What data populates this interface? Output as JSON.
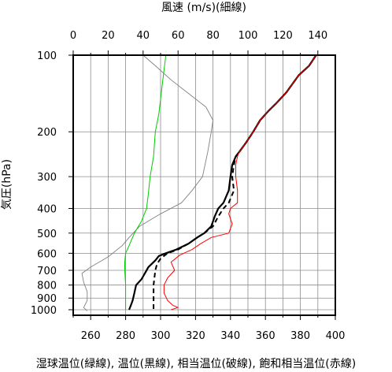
{
  "chart_data": {
    "type": "line",
    "top_axis": {
      "label": "風速 (m/s)(細線)",
      "ticks": [
        0,
        20,
        40,
        60,
        80,
        100,
        120,
        140
      ],
      "range": [
        0,
        150
      ]
    },
    "bottom_axis": {
      "label": "湿球温位(緑線), 温位(黒線), 相当温位(破線), 飽和相当温位(赤線)",
      "ticks": [
        260,
        280,
        300,
        320,
        340,
        360,
        380,
        400
      ],
      "range": [
        250,
        400
      ]
    },
    "y_axis": {
      "label": "気圧(hPa)",
      "scale": "log",
      "reversed": true,
      "ticks": [
        100,
        200,
        300,
        400,
        500,
        600,
        700,
        800,
        900,
        1000
      ],
      "range": [
        100,
        1050
      ]
    },
    "grid": true,
    "series": [
      {
        "key": "wind",
        "axis": "top",
        "color": "#808080",
        "style": "thin",
        "points": [
          [
            40,
            100
          ],
          [
            47,
            110
          ],
          [
            56,
            125
          ],
          [
            68,
            145
          ],
          [
            76,
            160
          ],
          [
            80,
            180
          ],
          [
            79,
            200
          ],
          [
            77,
            240
          ],
          [
            74,
            300
          ],
          [
            68,
            340
          ],
          [
            62,
            380
          ],
          [
            50,
            420
          ],
          [
            38,
            470
          ],
          [
            32,
            520
          ],
          [
            28,
            560
          ],
          [
            20,
            620
          ],
          [
            10,
            680
          ],
          [
            5,
            720
          ],
          [
            6,
            780
          ],
          [
            8,
            850
          ],
          [
            8,
            920
          ],
          [
            6,
            980
          ],
          [
            8,
            1010
          ]
        ]
      },
      {
        "key": "wet_bulb_theta",
        "axis": "bottom",
        "color": "#00cc00",
        "style": "solid",
        "points": [
          [
            303,
            100
          ],
          [
            301,
            130
          ],
          [
            299,
            170
          ],
          [
            297,
            200
          ],
          [
            296,
            250
          ],
          [
            294,
            300
          ],
          [
            293,
            350
          ],
          [
            292,
            400
          ],
          [
            289,
            450
          ],
          [
            285,
            500
          ],
          [
            282,
            560
          ],
          [
            280,
            600
          ],
          [
            279.5,
            650
          ],
          [
            279.5,
            700
          ],
          [
            280,
            800
          ],
          [
            280,
            900
          ],
          [
            280,
            1000
          ]
        ]
      },
      {
        "key": "theta",
        "axis": "bottom",
        "color": "#000000",
        "style": "thick",
        "points": [
          [
            389,
            100
          ],
          [
            385,
            110
          ],
          [
            379,
            120
          ],
          [
            372,
            140
          ],
          [
            366,
            155
          ],
          [
            362,
            165
          ],
          [
            357,
            180
          ],
          [
            353,
            200
          ],
          [
            349,
            220
          ],
          [
            345,
            240
          ],
          [
            343,
            250
          ],
          [
            341,
            270
          ],
          [
            340,
            300
          ],
          [
            339,
            340
          ],
          [
            336,
            380
          ],
          [
            333,
            400
          ],
          [
            331,
            430
          ],
          [
            329,
            470
          ],
          [
            325,
            500
          ],
          [
            321,
            520
          ],
          [
            316,
            550
          ],
          [
            309,
            580
          ],
          [
            303,
            600
          ],
          [
            299,
            615
          ],
          [
            297,
            640
          ],
          [
            293,
            680
          ],
          [
            291,
            720
          ],
          [
            289,
            760
          ],
          [
            286,
            800
          ],
          [
            285,
            860
          ],
          [
            284,
            920
          ],
          [
            283,
            960
          ],
          [
            282,
            1000
          ]
        ]
      },
      {
        "key": "equiv_theta",
        "axis": "bottom",
        "color": "#000000",
        "style": "dashed",
        "points": [
          [
            389,
            100
          ],
          [
            385,
            110
          ],
          [
            379,
            120
          ],
          [
            372,
            140
          ],
          [
            366,
            155
          ],
          [
            362,
            165
          ],
          [
            357,
            180
          ],
          [
            353,
            200
          ],
          [
            349,
            220
          ],
          [
            345,
            240
          ],
          [
            343,
            250
          ],
          [
            342,
            270
          ],
          [
            341,
            300
          ],
          [
            342,
            340
          ],
          [
            339,
            380
          ],
          [
            336,
            400
          ],
          [
            333,
            430
          ],
          [
            330,
            470
          ],
          [
            325,
            500
          ],
          [
            321,
            520
          ],
          [
            316,
            550
          ],
          [
            310,
            580
          ],
          [
            304,
            600
          ],
          [
            300,
            630
          ],
          [
            298,
            660
          ],
          [
            297,
            700
          ],
          [
            296,
            800
          ],
          [
            296,
            900
          ],
          [
            296,
            1000
          ]
        ]
      },
      {
        "key": "sat_equiv_theta",
        "axis": "bottom",
        "color": "#ff0000",
        "style": "solid",
        "points": [
          [
            389,
            100
          ],
          [
            385,
            110
          ],
          [
            379,
            120
          ],
          [
            372,
            140
          ],
          [
            366,
            155
          ],
          [
            362,
            165
          ],
          [
            357,
            180
          ],
          [
            353,
            200
          ],
          [
            349,
            220
          ],
          [
            345,
            240
          ],
          [
            344,
            250
          ],
          [
            343,
            270
          ],
          [
            343,
            300
          ],
          [
            344,
            340
          ],
          [
            344,
            380
          ],
          [
            340,
            400
          ],
          [
            339,
            420
          ],
          [
            341,
            460
          ],
          [
            339,
            500
          ],
          [
            329,
            520
          ],
          [
            323,
            550
          ],
          [
            318,
            580
          ],
          [
            311,
            610
          ],
          [
            306,
            650
          ],
          [
            308,
            700
          ],
          [
            304,
            750
          ],
          [
            302,
            800
          ],
          [
            302,
            860
          ],
          [
            304,
            920
          ],
          [
            307,
            960
          ],
          [
            310,
            980
          ],
          [
            306,
            1000
          ]
        ]
      }
    ]
  }
}
